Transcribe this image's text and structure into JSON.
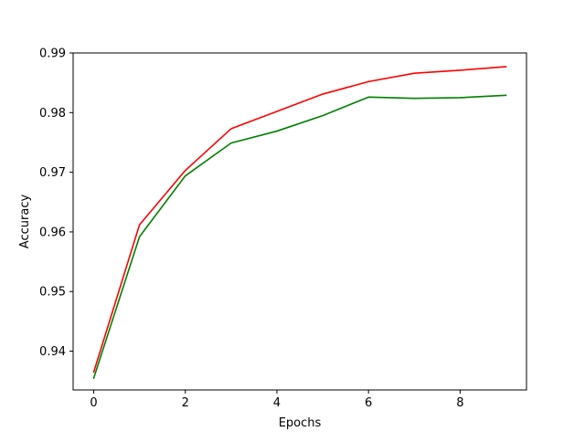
{
  "chart_data": {
    "type": "line",
    "title": "",
    "xlabel": "Epochs",
    "ylabel": "Accuracy",
    "x": [
      0,
      1,
      2,
      3,
      4,
      5,
      6,
      7,
      8,
      9
    ],
    "xlim": [
      -0.45,
      9.45
    ],
    "ylim": [
      0.9335,
      0.99
    ],
    "xticks": [
      0,
      2,
      4,
      6,
      8
    ],
    "xtick_labels": [
      "0",
      "2",
      "4",
      "6",
      "8"
    ],
    "yticks": [
      0.94,
      0.95,
      0.96,
      0.97,
      0.98,
      0.99
    ],
    "ytick_labels": [
      "0.94",
      "0.95",
      "0.96",
      "0.97",
      "0.98",
      "0.99"
    ],
    "grid": false,
    "series": [
      {
        "color": "#ff0000",
        "values": [
          0.9365,
          0.9612,
          0.9703,
          0.9773,
          0.9802,
          0.9831,
          0.9852,
          0.9866,
          0.9871,
          0.9877
        ]
      },
      {
        "color": "#008000",
        "values": [
          0.9355,
          0.9592,
          0.9694,
          0.9749,
          0.9769,
          0.9795,
          0.9826,
          0.9824,
          0.9825,
          0.9829
        ]
      }
    ]
  }
}
